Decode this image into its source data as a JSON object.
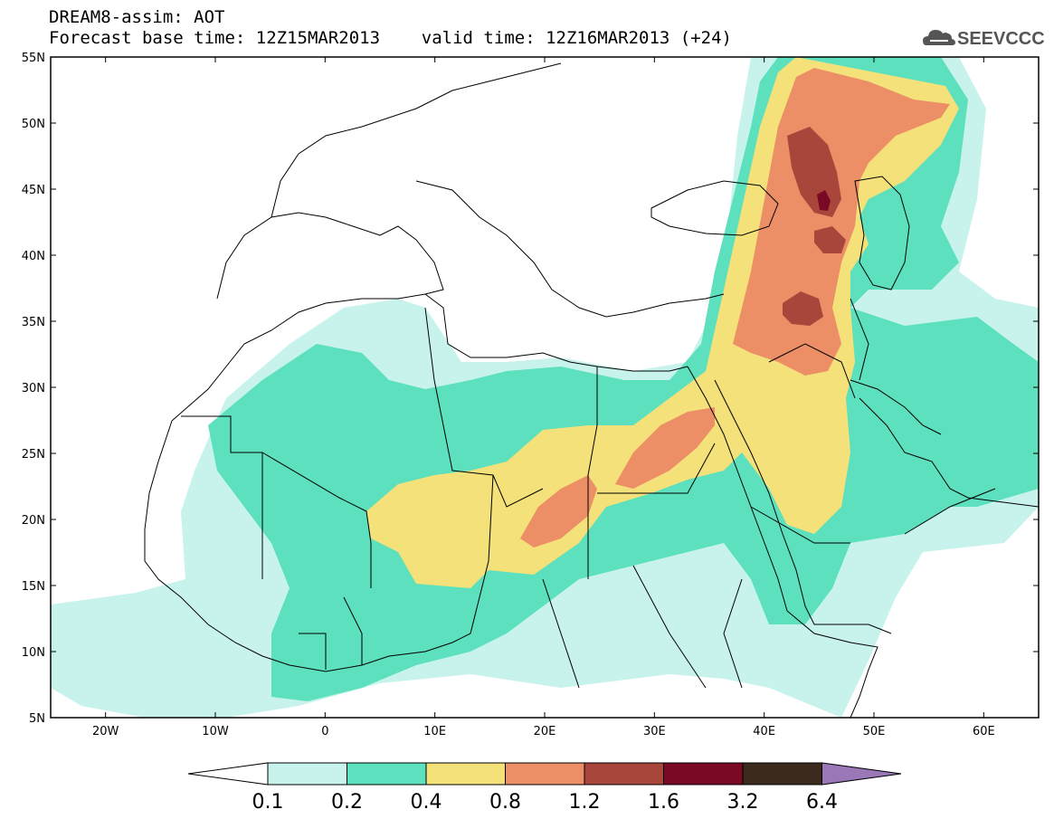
{
  "header": {
    "line1": "DREAM8-assim: AOT",
    "line2": "Forecast base time: 12Z15MAR2013    valid time: 12Z16MAR2013 (+24)",
    "logo_text": "SEEVCCC"
  },
  "map": {
    "lon_range": [
      -25,
      65
    ],
    "lat_range": [
      5,
      55
    ],
    "lat_ticks": [
      "55N",
      "50N",
      "45N",
      "40N",
      "35N",
      "30N",
      "25N",
      "20N",
      "15N",
      "10N",
      "5N"
    ],
    "lon_ticks": [
      "20W",
      "10W",
      "0",
      "10E",
      "20E",
      "30E",
      "40E",
      "50E",
      "60E"
    ],
    "background": "#ffffff",
    "coastline_color": "#000000"
  },
  "legend": {
    "levels": [
      "0.1",
      "0.2",
      "0.4",
      "0.8",
      "1.2",
      "1.6",
      "3.2",
      "6.4"
    ],
    "colors": [
      "#c8f3ec",
      "#5ce0bd",
      "#f5e17a",
      "#ec8e66",
      "#a8463c",
      "#7a0a23",
      "#3d2a1e",
      "#9a78b8"
    ],
    "under_color": "#ffffff"
  }
}
